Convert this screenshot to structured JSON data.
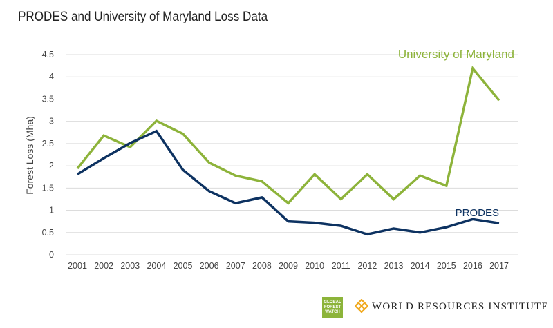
{
  "chart_data": {
    "type": "line",
    "title": "PRODES and University of Maryland Loss Data",
    "xlabel": "",
    "ylabel": "Forest Loss (Mha)",
    "ylim": [
      0,
      4.5
    ],
    "yticks": [
      "0",
      "0.5",
      "1",
      "1.5",
      "2",
      "2.5",
      "3",
      "3.5",
      "4",
      "4.5"
    ],
    "grid": true,
    "x": [
      "2001",
      "2002",
      "2003",
      "2004",
      "2005",
      "2006",
      "2007",
      "2008",
      "2009",
      "2010",
      "2011",
      "2012",
      "2013",
      "2014",
      "2015",
      "2016",
      "2017"
    ],
    "series": [
      {
        "name": "University of Maryland",
        "color": "#8db33a",
        "values": [
          1.94,
          2.68,
          2.42,
          3.01,
          2.72,
          2.07,
          1.78,
          1.65,
          1.16,
          1.81,
          1.25,
          1.81,
          1.25,
          1.78,
          1.55,
          4.19,
          3.47
        ]
      },
      {
        "name": "PRODES",
        "color": "#0d3261",
        "values": [
          1.81,
          2.17,
          2.51,
          2.78,
          1.91,
          1.43,
          1.16,
          1.29,
          0.75,
          0.72,
          0.65,
          0.46,
          0.59,
          0.5,
          0.62,
          0.8,
          0.71
        ]
      }
    ]
  },
  "logos": {
    "gfw": "GLOBAL FOREST WATCH",
    "wri": "WORLD RESOURCES INSTITUTE"
  }
}
